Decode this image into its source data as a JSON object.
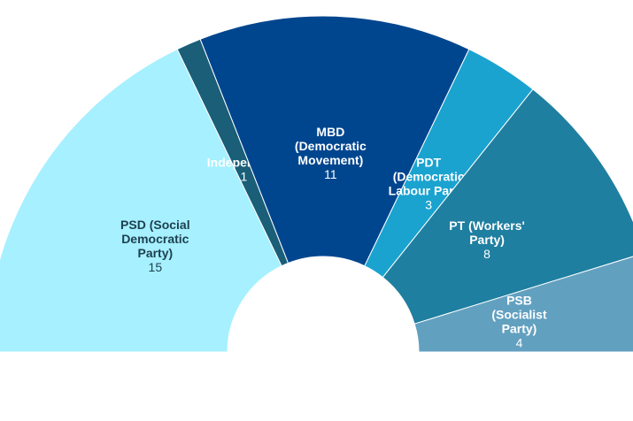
{
  "chart_data": {
    "type": "pie",
    "categories": [
      "PSD (Social Democratic Party)",
      "Independent",
      "MBD (Democratic Movement)",
      "PDT (Democratic Labour Party)",
      "PT (Workers' Party)",
      "PSB (Socialist Party)"
    ],
    "values": [
      15,
      1,
      11,
      3,
      8,
      4
    ],
    "colors": [
      "#a6f0ff",
      "#1a5e78",
      "#00468f",
      "#1ba3d0",
      "#1f7fa0",
      "#62a0c0"
    ]
  }
}
